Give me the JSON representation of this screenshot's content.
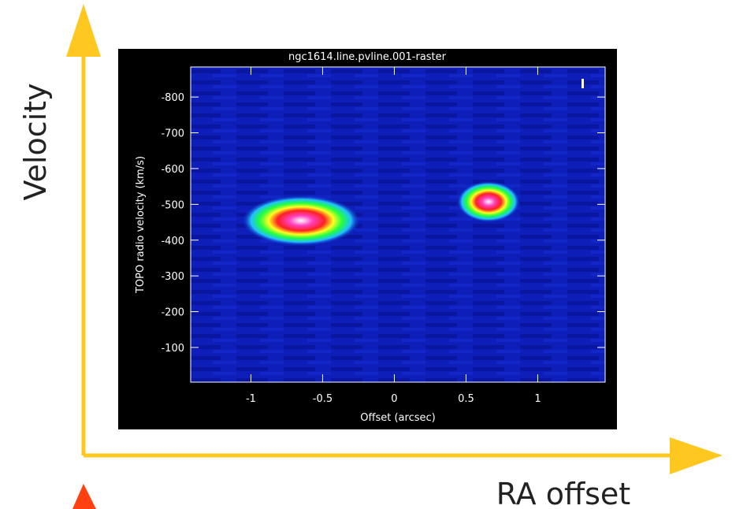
{
  "chart_data": {
    "type": "raster",
    "title": "ngc1614.line.pvline.001-raster",
    "x_label": "Offset (arcsec)",
    "y_label": "TOPO radio velocity (km/s)",
    "xlim": [
      -1.42,
      1.47
    ],
    "xticks": [
      -1,
      -0.5,
      0,
      0.5,
      1
    ],
    "ylim": [
      -3,
      -884
    ],
    "yticks": [
      -800,
      -700,
      -600,
      -500,
      -400,
      -300,
      -200,
      -100
    ],
    "outer_labels": {
      "vertical": "Velocity",
      "horizontal": "RA offset"
    }
  }
}
